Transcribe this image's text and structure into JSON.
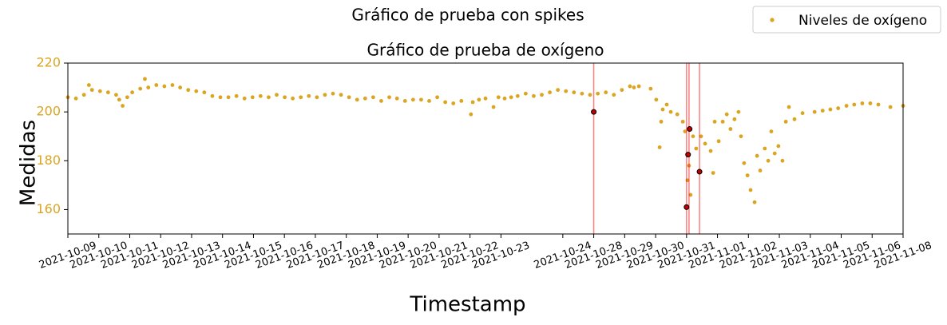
{
  "chart_data": {
    "type": "scatter",
    "suptitle": "Gráfico de prueba con spikes",
    "title": "Gráfico de prueba de oxígeno",
    "x_label": "Timestamp",
    "y_label": "Medidas",
    "xlim": [
      0,
      27
    ],
    "ylim": [
      150,
      220
    ],
    "xticks": [
      {
        "value": 0,
        "label": "2021-10-09"
      },
      {
        "value": 1,
        "label": "2021-10-10"
      },
      {
        "value": 2,
        "label": "2021-10-11"
      },
      {
        "value": 3,
        "label": "2021-10-12"
      },
      {
        "value": 4,
        "label": "2021-10-13"
      },
      {
        "value": 5,
        "label": "2021-10-14"
      },
      {
        "value": 6,
        "label": "2021-10-15"
      },
      {
        "value": 7,
        "label": "2021-10-16"
      },
      {
        "value": 8,
        "label": "2021-10-17"
      },
      {
        "value": 9,
        "label": "2021-10-18"
      },
      {
        "value": 10,
        "label": "2021-10-19"
      },
      {
        "value": 11,
        "label": "2021-10-20"
      },
      {
        "value": 12,
        "label": "2021-10-21"
      },
      {
        "value": 13,
        "label": "2021-10-22"
      },
      {
        "value": 14,
        "label": "2021-10-23"
      },
      {
        "value": 16,
        "label": "2021-10-24"
      },
      {
        "value": 17,
        "label": "2021-10-28"
      },
      {
        "value": 18,
        "label": "2021-10-29"
      },
      {
        "value": 19,
        "label": "2021-10-30"
      },
      {
        "value": 20,
        "label": "2021-10-31"
      },
      {
        "value": 21,
        "label": "2021-11-01"
      },
      {
        "value": 22,
        "label": "2021-11-02"
      },
      {
        "value": 23,
        "label": "2021-11-03"
      },
      {
        "value": 24,
        "label": "2021-11-04"
      },
      {
        "value": 25,
        "label": "2021-11-05"
      },
      {
        "value": 26,
        "label": "2021-11-06"
      },
      {
        "value": 27,
        "label": "2021-11-08"
      }
    ],
    "yticks": [
      160,
      180,
      200,
      220
    ],
    "ytick_color": "#daa520",
    "legend": "upper right",
    "series": [
      {
        "name": "Niveles de oxígeno",
        "color": "#daa520",
        "x": [
          0,
          0.26,
          0.52,
          0.68,
          0.78,
          1.04,
          1.3,
          1.56,
          1.66,
          1.77,
          1.92,
          2.08,
          2.34,
          2.49,
          2.6,
          2.86,
          3.12,
          3.38,
          3.63,
          3.89,
          4.15,
          4.41,
          4.67,
          4.93,
          5.19,
          5.45,
          5.71,
          5.97,
          6.23,
          6.49,
          6.75,
          7.01,
          7.27,
          7.53,
          7.79,
          8.05,
          8.31,
          8.57,
          8.83,
          9.09,
          9.35,
          9.61,
          9.87,
          10.13,
          10.39,
          10.64,
          10.9,
          11.16,
          11.42,
          11.68,
          11.94,
          12.2,
          12.46,
          12.72,
          13.03,
          13.09,
          13.29,
          13.5,
          13.76,
          13.92,
          14.12,
          14.33,
          14.54,
          14.8,
          15.06,
          15.32,
          15.58,
          15.84,
          16.1,
          16.36,
          16.62,
          16.88,
          17.13,
          17.39,
          17.65,
          17.91,
          18.17,
          18.3,
          18.46,
          18.84,
          19.02,
          19.13,
          19.18,
          19.23,
          19.36,
          19.49,
          19.7,
          19.88,
          19.95,
          20.03,
          20.08,
          20.13,
          20.21,
          20.31,
          20.47,
          20.6,
          20.78,
          20.86,
          20.91,
          21.04,
          21.17,
          21.3,
          21.42,
          21.55,
          21.68,
          21.76,
          21.86,
          21.97,
          22.07,
          22.2,
          22.28,
          22.38,
          22.53,
          22.64,
          22.74,
          22.85,
          22.97,
          23.1,
          23.21,
          23.31,
          23.49,
          23.75,
          24.14,
          24.4,
          24.65,
          24.9,
          25.17,
          25.42,
          25.68,
          25.94,
          26.2,
          26.59,
          27
        ],
        "values": [
          206,
          205.5,
          207,
          211,
          209,
          208.5,
          208,
          207,
          205,
          202.5,
          206,
          208,
          209.5,
          213.5,
          210,
          211,
          210.5,
          211,
          210,
          209,
          208.5,
          208,
          206.5,
          206,
          206,
          206.5,
          205.5,
          206,
          206.5,
          206,
          207,
          206,
          205.5,
          206,
          206.5,
          206,
          207,
          207.5,
          207,
          206,
          205,
          205.5,
          206,
          204.5,
          206,
          205.5,
          204.5,
          205,
          205,
          204.5,
          206,
          204,
          203.5,
          204.5,
          199,
          204,
          205,
          205.5,
          202,
          206,
          205.5,
          206,
          206.5,
          207.5,
          206.5,
          207,
          208,
          209,
          208.5,
          208,
          207.5,
          207,
          207.5,
          208,
          207,
          209,
          210.5,
          210,
          210.5,
          209.5,
          205,
          185.5,
          196,
          201,
          203,
          200,
          199,
          196,
          192,
          172,
          178,
          166,
          190,
          185,
          190,
          187,
          184,
          175,
          196,
          188,
          196,
          199,
          193,
          197,
          200,
          190,
          179,
          174,
          168,
          163,
          182,
          176,
          185,
          180,
          192,
          183,
          186,
          180,
          196,
          202,
          197,
          199.5,
          200,
          200.5,
          201,
          201.5,
          202.5,
          203,
          203.5,
          203.5,
          203,
          202,
          202.5
        ]
      }
    ],
    "spikes": {
      "color": "#c00000",
      "x": [
        17,
        20,
        20.05,
        20.1,
        20.42
      ],
      "values": [
        200,
        161,
        182.5,
        193,
        175.5
      ]
    },
    "vlines": [
      17,
      20,
      20.08,
      20.42
    ],
    "vline_color": "#ff0000"
  }
}
